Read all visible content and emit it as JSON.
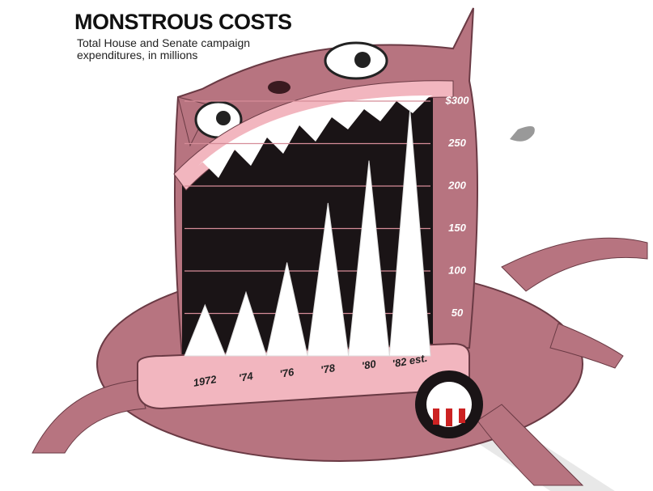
{
  "chart_data": {
    "type": "bar",
    "title": "MONSTROUS COSTS",
    "subtitle": "Total House and Senate campaign expenditures, in millions",
    "categories": [
      "1972",
      "'74",
      "'76",
      "'78",
      "'80",
      "'82 est."
    ],
    "values": [
      60,
      75,
      110,
      180,
      230,
      290
    ],
    "color": "#ffffff",
    "ylim": [
      0,
      300
    ],
    "yticks": [
      50,
      100,
      150,
      200,
      250,
      {
        "value": 300,
        "label": "$300"
      }
    ],
    "grid": true
  }
}
